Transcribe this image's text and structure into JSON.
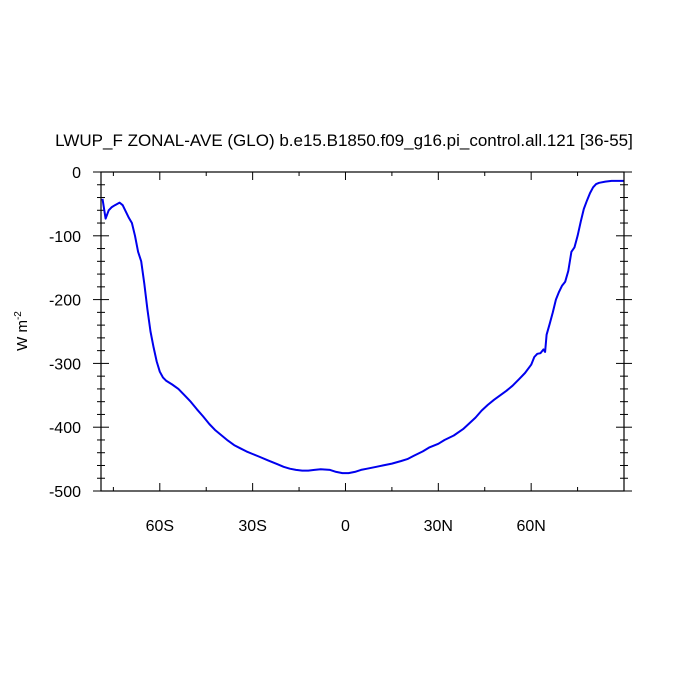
{
  "chart_data": {
    "type": "line",
    "title": "LWUP_F ZONAL-AVE (GLO) b.e15.B1850.f09_g16.pi_control.all.121 [36-55]",
    "xlabel": "",
    "ylabel": {
      "base": "W m",
      "exponent": "-2"
    },
    "xlim": [
      -79,
      90
    ],
    "ylim": [
      -500,
      0
    ],
    "x_ticks": [
      {
        "value": -60,
        "label": "60S"
      },
      {
        "value": -30,
        "label": "30S"
      },
      {
        "value": 0,
        "label": "0"
      },
      {
        "value": 30,
        "label": "30N"
      },
      {
        "value": 60,
        "label": "60N"
      }
    ],
    "y_ticks": [
      {
        "value": 0,
        "label": "0"
      },
      {
        "value": -100,
        "label": "-100"
      },
      {
        "value": -200,
        "label": "-200"
      },
      {
        "value": -300,
        "label": "-300"
      },
      {
        "value": -400,
        "label": "-400"
      },
      {
        "value": -500,
        "label": "-500"
      }
    ],
    "grid": false,
    "series": [
      {
        "color": "#0000ee",
        "x": [
          -78.5,
          -77.5,
          -76.5,
          -75.5,
          -74.5,
          -73,
          -72,
          -71,
          -70,
          -69,
          -68,
          -67,
          -66,
          -65,
          -64,
          -63,
          -62,
          -61,
          -60,
          -59,
          -58,
          -56,
          -54,
          -52,
          -50,
          -48,
          -46,
          -44,
          -42,
          -40,
          -38,
          -36,
          -34,
          -32,
          -30,
          -28,
          -25,
          -22,
          -20,
          -18,
          -16,
          -14,
          -12,
          -10,
          -8,
          -5,
          -3,
          -1,
          0,
          1,
          3,
          5,
          7,
          10,
          12,
          15,
          18,
          20,
          22,
          25,
          27,
          30,
          32,
          35,
          38,
          40,
          42,
          44,
          46,
          48,
          50,
          52,
          54,
          56,
          58,
          60,
          61,
          62,
          63,
          64,
          64.5,
          65,
          66,
          67,
          68,
          69,
          70,
          71,
          72,
          73,
          74,
          75,
          76,
          77,
          78,
          79,
          80,
          81,
          82,
          84,
          86,
          88,
          90
        ],
        "y": [
          -42,
          -73,
          -60,
          -55,
          -52,
          -48,
          -52,
          -62,
          -72,
          -80,
          -100,
          -125,
          -140,
          -175,
          -215,
          -250,
          -275,
          -297,
          -313,
          -322,
          -327,
          -333,
          -340,
          -350,
          -360,
          -372,
          -383,
          -395,
          -405,
          -413,
          -421,
          -428,
          -433,
          -438,
          -442,
          -446,
          -452,
          -458,
          -462,
          -465,
          -467,
          -468,
          -468,
          -467,
          -466,
          -467,
          -470,
          -472,
          -472,
          -472,
          -470,
          -467,
          -465,
          -462,
          -460,
          -457,
          -453,
          -450,
          -445,
          -438,
          -432,
          -426,
          -420,
          -413,
          -403,
          -394,
          -385,
          -374,
          -365,
          -357,
          -350,
          -343,
          -335,
          -325,
          -315,
          -302,
          -290,
          -285,
          -284,
          -278,
          -282,
          -255,
          -238,
          -220,
          -200,
          -188,
          -178,
          -172,
          -155,
          -125,
          -118,
          -100,
          -78,
          -58,
          -45,
          -33,
          -24,
          -19,
          -17,
          -15,
          -14,
          -14,
          -14
        ]
      }
    ]
  }
}
